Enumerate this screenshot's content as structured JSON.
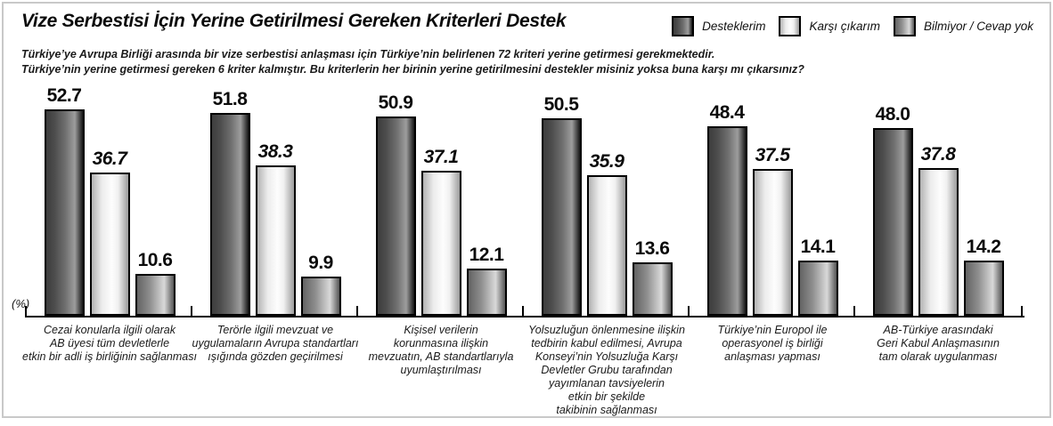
{
  "window": {
    "background": "#ffffff",
    "frame_border_color": "#c9c9c9"
  },
  "header": {
    "title": "Vize Serbestisi İçin Yerine Getirilmesi Gereken Kriterleri Destek",
    "subtitle_line1": "Türkiye’ye Avrupa Birliği arasında bir vize serbestisi anlaşması için Türkiye’nin belirlenen 72 kriteri yerine getirmesi gerekmektedir.",
    "subtitle_line2": "Türkiye’nin yerine getirmesi gereken 6 kriter kalmıştır. Bu kriterlerin her birinin yerine getirilmesini destekler misiniz yoksa buna karşı mı çıkarsınız?"
  },
  "legend": {
    "position": "top-right",
    "items": [
      {
        "label": "Desteklerim",
        "swatch": "dark",
        "color": "#3d3d3d"
      },
      {
        "label": "Karşı çıkarım",
        "swatch": "light",
        "color": "#ececec"
      },
      {
        "label": "Bilmiyor / Cevap yok",
        "swatch": "medium",
        "color": "#8f8f8f"
      }
    ]
  },
  "axis": {
    "unit_label": "(%)"
  },
  "colors": {
    "bar_dark": "#3d3d3d",
    "bar_light": "#ececec",
    "bar_medium": "#8f8f8f",
    "axis": "#000000",
    "text": "#111111"
  },
  "chart_data": {
    "type": "bar",
    "title": "Vize Serbestisi İçin Yerine Getirilmesi Gereken Kriterleri Destek",
    "unit": "%",
    "ylim": [
      0,
      55
    ],
    "grid": false,
    "value_labels": true,
    "legend_position": "top-right",
    "categories": [
      [
        "Cezai konularla ilgili  olarak",
        "AB üyesi tüm devletlerle",
        "etkin bir adli iş birliğinin sağlanması"
      ],
      [
        "Terörle ilgili mevzuat ve",
        "uygulamaların Avrupa standartları",
        "ışığında gözden geçirilmesi"
      ],
      [
        "Kişisel verilerin",
        "korunmasına ilişkin",
        "mevzuatın, AB standartlarıyla",
        "uyumlaştırılması"
      ],
      [
        "Yolsuzluğun önlenmesine ilişkin",
        "tedbirin kabul edilmesi, Avrupa",
        "Konseyi’nin Yolsuzluğa Karşı",
        "Devletler Grubu tarafından",
        "yayımlanan tavsiyelerin",
        "etkin bir şekilde",
        "takibinin sağlanması"
      ],
      [
        "Türkiye’nin Europol ile",
        "operasyonel iş birliği",
        "anlaşması yapması"
      ],
      [
        "AB-Türkiye arasındaki",
        "Geri Kabul Anlaşmasının",
        "tam olarak uygulanması"
      ]
    ],
    "series": [
      {
        "name": "Desteklerim",
        "values": [
          52.7,
          51.8,
          50.9,
          50.5,
          48.4,
          48.0
        ]
      },
      {
        "name": "Karşı çıkarım",
        "values": [
          36.7,
          38.3,
          37.1,
          35.9,
          37.5,
          37.8
        ]
      },
      {
        "name": "Bilmiyor / Cevap yok",
        "values": [
          10.6,
          9.9,
          12.1,
          13.6,
          14.1,
          14.2
        ]
      }
    ]
  }
}
